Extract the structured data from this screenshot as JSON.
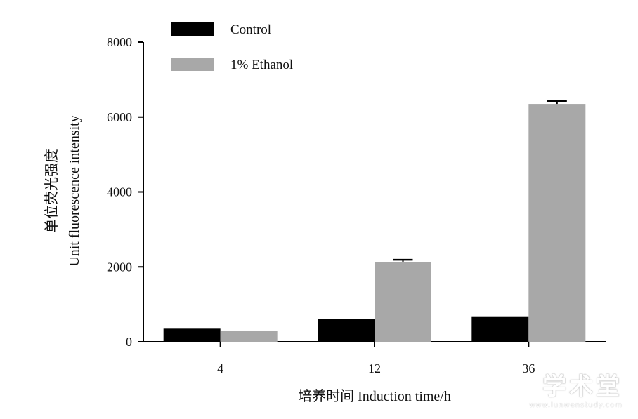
{
  "chart_data": {
    "type": "bar",
    "categories": [
      "4",
      "12",
      "36"
    ],
    "series": [
      {
        "name": "Control",
        "values": [
          350,
          600,
          680
        ],
        "errors": [
          0,
          0,
          0
        ],
        "color": "#000000"
      },
      {
        "name": "1% Ethanol",
        "values": [
          300,
          2130,
          6350
        ],
        "errors": [
          0,
          60,
          80
        ],
        "color": "#a8a8a8"
      }
    ],
    "y_ticks": [
      "0",
      "2000",
      "4000",
      "6000",
      "8000"
    ],
    "ylim": [
      0,
      8000
    ],
    "ylabel_line1": "单位荧光强度",
    "ylabel_line2": "Unit fluorescence intensity",
    "xlabel": "培养时间 Induction time/h",
    "legend_position": "top-left",
    "grid": false
  },
  "watermark": {
    "text": "学术堂",
    "url": "www.lunwenstudy.com"
  }
}
